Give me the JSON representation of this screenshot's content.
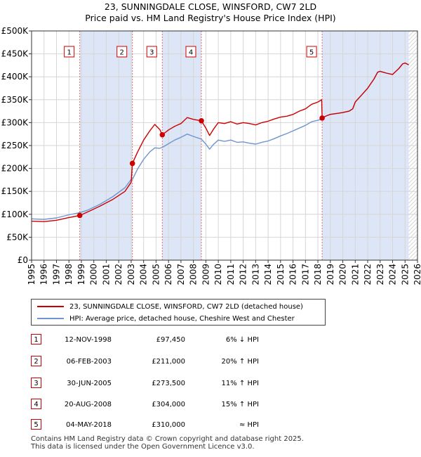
{
  "title": {
    "line1": "23, SUNNINGDALE CLOSE, WINSFORD, CW7 2LD",
    "line2": "Price paid vs. HM Land Registry's House Price Index (HPI)"
  },
  "colors": {
    "property": "#cc0000",
    "hpi": "#6f95cf",
    "shade": "#dde6f6",
    "grid": "#d6d6d6",
    "marker_line": "#e07070"
  },
  "chart_data": {
    "type": "line",
    "title": "Price paid vs. HM Land Registry's House Price Index (HPI)",
    "xlabel": "",
    "ylabel": "",
    "xlim": [
      1995,
      2026
    ],
    "ylim": [
      0,
      500000
    ],
    "y_ticks": [
      {
        "value": 0,
        "label": "£0"
      },
      {
        "value": 50000,
        "label": "£50K"
      },
      {
        "value": 100000,
        "label": "£100K"
      },
      {
        "value": 150000,
        "label": "£150K"
      },
      {
        "value": 200000,
        "label": "£200K"
      },
      {
        "value": 250000,
        "label": "£250K"
      },
      {
        "value": 300000,
        "label": "£300K"
      },
      {
        "value": 350000,
        "label": "£350K"
      },
      {
        "value": 400000,
        "label": "£400K"
      },
      {
        "value": 450000,
        "label": "£450K"
      },
      {
        "value": 500000,
        "label": "£500K"
      }
    ],
    "x_ticks": [
      "1995",
      "1996",
      "1997",
      "1998",
      "1999",
      "2000",
      "2001",
      "2002",
      "2003",
      "2004",
      "2005",
      "2006",
      "2007",
      "2008",
      "2009",
      "2010",
      "2011",
      "2012",
      "2013",
      "2014",
      "2015",
      "2016",
      "2017",
      "2018",
      "2019",
      "2020",
      "2021",
      "2022",
      "2023",
      "2024",
      "2025",
      "2026"
    ],
    "shaded_periods": [
      [
        1998.87,
        2003.1
      ],
      [
        2005.5,
        2008.64
      ],
      [
        2018.34,
        2025.3
      ]
    ],
    "hatched_from": 2025.3,
    "series": [
      {
        "name": "23, SUNNINGDALE CLOSE, WINSFORD, CW7 2LD (detached house)",
        "x": [
          1995.0,
          1996.0,
          1997.0,
          1998.0,
          1998.87,
          1999.5,
          2000.5,
          2001.5,
          2002.5,
          2003.0,
          2003.1,
          2003.5,
          2004.0,
          2004.5,
          2004.9,
          2005.3,
          2005.5,
          2006.0,
          2006.5,
          2007.0,
          2007.5,
          2008.0,
          2008.64,
          2009.0,
          2009.3,
          2009.6,
          2010.0,
          2010.5,
          2011.0,
          2011.5,
          2012.0,
          2012.5,
          2013.0,
          2013.5,
          2014.0,
          2014.5,
          2015.0,
          2015.5,
          2016.0,
          2016.5,
          2017.0,
          2017.5,
          2018.0,
          2018.3,
          2018.34,
          2018.7,
          2019.0,
          2019.5,
          2020.0,
          2020.5,
          2020.8,
          2021.0,
          2021.5,
          2022.0,
          2022.5,
          2022.8,
          2023.0,
          2023.5,
          2024.0,
          2024.5,
          2024.8,
          2025.0,
          2025.3
        ],
        "values": [
          85000,
          84000,
          87000,
          93000,
          97450,
          105000,
          118000,
          132000,
          150000,
          170000,
          211000,
          235000,
          262000,
          282000,
          296000,
          285000,
          273500,
          284000,
          292000,
          298000,
          311000,
          307000,
          304000,
          288000,
          272000,
          285000,
          300000,
          298000,
          302000,
          297000,
          300000,
          298000,
          295000,
          300000,
          303000,
          308000,
          312000,
          314000,
          318000,
          325000,
          330000,
          340000,
          345000,
          350000,
          310000,
          315000,
          318000,
          320000,
          322000,
          325000,
          330000,
          345000,
          360000,
          375000,
          395000,
          410000,
          412000,
          408000,
          405000,
          418000,
          428000,
          430000,
          426000
        ]
      },
      {
        "name": "HPI: Average price, detached house, Cheshire West and Chester",
        "x": [
          1995.0,
          1996.0,
          1997.0,
          1998.0,
          1998.87,
          1999.5,
          2000.5,
          2001.5,
          2002.5,
          2003.0,
          2003.1,
          2003.5,
          2004.0,
          2004.5,
          2004.9,
          2005.3,
          2005.5,
          2006.0,
          2006.5,
          2007.0,
          2007.5,
          2008.0,
          2008.64,
          2009.0,
          2009.3,
          2009.6,
          2010.0,
          2010.5,
          2011.0,
          2011.5,
          2012.0,
          2012.5,
          2013.0,
          2013.5,
          2014.0,
          2014.5,
          2015.0,
          2015.5,
          2016.0,
          2016.5,
          2017.0,
          2017.5,
          2018.0,
          2018.3,
          2018.34,
          2018.7,
          2019.0,
          2019.5,
          2020.0,
          2020.5,
          2020.8,
          2021.0,
          2021.5,
          2022.0,
          2022.5,
          2022.8,
          2023.0,
          2023.5,
          2024.0,
          2024.5,
          2024.8,
          2025.0,
          2025.3
        ],
        "values": [
          90000,
          89000,
          92000,
          99000,
          103700,
          109000,
          122000,
          138000,
          158000,
          176000,
          176000,
          198000,
          220000,
          236000,
          245000,
          244000,
          246000,
          254000,
          262000,
          268000,
          275000,
          270000,
          264000,
          253000,
          242000,
          252000,
          262000,
          259000,
          262000,
          257000,
          258000,
          255000,
          253000,
          257000,
          260000,
          265000,
          271000,
          276000,
          282000,
          288000,
          294000,
          302000,
          305000,
          308000,
          310000,
          315000,
          318000,
          320000,
          322000,
          325000,
          330000,
          345000,
          360000,
          375000,
          395000,
          410000,
          412000,
          408000,
          405000,
          418000,
          428000,
          430000,
          426000
        ]
      }
    ],
    "sales": [
      {
        "id": "1",
        "x": 1998.87,
        "price": 97450
      },
      {
        "id": "2",
        "x": 2003.1,
        "price": 211000
      },
      {
        "id": "3",
        "x": 2005.5,
        "price": 273500
      },
      {
        "id": "4",
        "x": 2008.64,
        "price": 304000
      },
      {
        "id": "5",
        "x": 2018.34,
        "price": 310000
      }
    ]
  },
  "legend": {
    "property_label": "23, SUNNINGDALE CLOSE, WINSFORD, CW7 2LD (detached house)",
    "hpi_label": "HPI: Average price, detached house, Cheshire West and Chester"
  },
  "sales_table": [
    {
      "num": "1",
      "date": "12-NOV-1998",
      "price": "£97,450",
      "hpi": "6% ↓ HPI"
    },
    {
      "num": "2",
      "date": "06-FEB-2003",
      "price": "£211,000",
      "hpi": "20% ↑ HPI"
    },
    {
      "num": "3",
      "date": "30-JUN-2005",
      "price": "£273,500",
      "hpi": "11% ↑ HPI"
    },
    {
      "num": "4",
      "date": "20-AUG-2008",
      "price": "£304,000",
      "hpi": "15% ↑ HPI"
    },
    {
      "num": "5",
      "date": "04-MAY-2018",
      "price": "£310,000",
      "hpi": "≈ HPI"
    }
  ],
  "footer": {
    "line1": "Contains HM Land Registry data © Crown copyright and database right 2025.",
    "line2": "This data is licensed under the Open Government Licence v3.0."
  }
}
